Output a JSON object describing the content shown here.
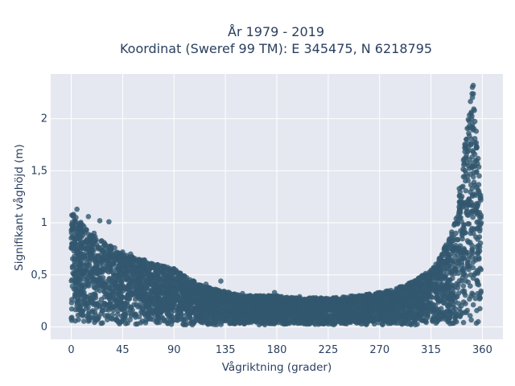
{
  "chart_data": {
    "type": "scatter",
    "title_lines": [
      "År 1979 - 2019",
      "Koordinat (Sweref 99 TM): E 345475, N 6218795"
    ],
    "xlabel": "Vågriktning (grader)",
    "ylabel": "Signifikant våghöjd (m)",
    "xlim": [
      -18,
      378
    ],
    "ylim": [
      -0.12,
      2.43
    ],
    "xticks": [
      0,
      45,
      90,
      135,
      180,
      225,
      270,
      315,
      360
    ],
    "xtick_labels": [
      "0",
      "45",
      "90",
      "135",
      "180",
      "225",
      "270",
      "315",
      "360"
    ],
    "yticks": [
      0,
      0.5,
      1,
      1.5,
      2
    ],
    "ytick_labels": [
      "0",
      "0,5",
      "1",
      "1,5",
      "2"
    ],
    "grid": true,
    "legend": "none",
    "series": [
      {
        "upper_envelope": [
          [
            0,
            1.1
          ],
          [
            10,
            1.0
          ],
          [
            20,
            0.88
          ],
          [
            30,
            0.82
          ],
          [
            45,
            0.7
          ],
          [
            60,
            0.66
          ],
          [
            75,
            0.6
          ],
          [
            90,
            0.56
          ],
          [
            105,
            0.45
          ],
          [
            120,
            0.38
          ],
          [
            135,
            0.34
          ],
          [
            150,
            0.3
          ],
          [
            165,
            0.3
          ],
          [
            180,
            0.3
          ],
          [
            195,
            0.28
          ],
          [
            210,
            0.28
          ],
          [
            225,
            0.28
          ],
          [
            240,
            0.29
          ],
          [
            255,
            0.31
          ],
          [
            270,
            0.33
          ],
          [
            285,
            0.37
          ],
          [
            300,
            0.44
          ],
          [
            315,
            0.55
          ],
          [
            325,
            0.72
          ],
          [
            335,
            0.98
          ],
          [
            342,
            1.5
          ],
          [
            348,
            2.1
          ],
          [
            352,
            2.35
          ],
          [
            356,
            1.7
          ],
          [
            360,
            1.0
          ]
        ],
        "points": [
          [
            5,
            1.13
          ],
          [
            2,
            1.08
          ],
          [
            15,
            1.06
          ],
          [
            33,
            1.01
          ],
          [
            25,
            1.02
          ],
          [
            8,
            0.95
          ],
          [
            20,
            0.9
          ],
          [
            38,
            0.76
          ],
          [
            45,
            0.72
          ],
          [
            52,
            0.7
          ],
          [
            61,
            0.62
          ],
          [
            70,
            0.6
          ],
          [
            82,
            0.58
          ],
          [
            95,
            0.5
          ],
          [
            105,
            0.43
          ],
          [
            118,
            0.41
          ],
          [
            131,
            0.44
          ],
          [
            150,
            0.32
          ],
          [
            178,
            0.33
          ],
          [
            200,
            0.29
          ],
          [
            225,
            0.27
          ],
          [
            252,
            0.3
          ],
          [
            280,
            0.35
          ],
          [
            292,
            0.37
          ],
          [
            305,
            0.47
          ],
          [
            318,
            0.56
          ],
          [
            325,
            0.68
          ],
          [
            333,
            0.86
          ],
          [
            337,
            1.04
          ],
          [
            340,
            1.2
          ],
          [
            343,
            1.35
          ],
          [
            346,
            1.65
          ],
          [
            348,
            1.86
          ],
          [
            350,
            2.05
          ],
          [
            351,
            2.24
          ],
          [
            352,
            2.32
          ],
          [
            353,
            2.08
          ],
          [
            355,
            1.72
          ],
          [
            357,
            1.3
          ],
          [
            359,
            1.0
          ]
        ]
      }
    ],
    "marker_color": "#32576f",
    "plot_bg": "#e5e8f0",
    "grid_color": "#ffffff"
  }
}
